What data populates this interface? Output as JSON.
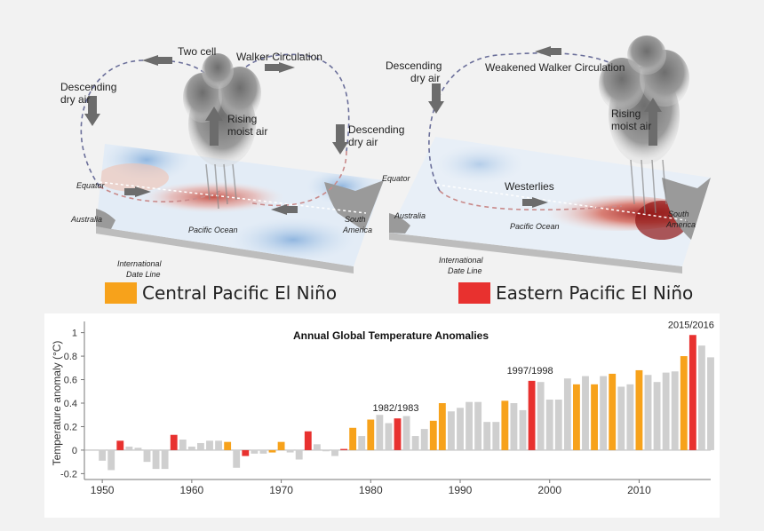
{
  "diagram": {
    "left_panel": {
      "labels": {
        "descending_left": [
          "Descending",
          "dry air"
        ],
        "two_cell": "Two cell",
        "walker": "Walker Circulation",
        "rising": [
          "Rising",
          "moist air"
        ],
        "descending_right": [
          "Descending",
          "dry air"
        ],
        "equator": "Equator",
        "australia": "Australia",
        "pacific": "Pacific Ocean",
        "south_america": [
          "South",
          "America"
        ],
        "date_line": [
          "International",
          "Date Line"
        ]
      }
    },
    "right_panel": {
      "labels": {
        "descending": [
          "Descending",
          "dry air"
        ],
        "weakened": "Weakened Walker Circulation",
        "rising": [
          "Rising",
          "moist air"
        ],
        "equator": "Equator",
        "westerlies": "Westerlies",
        "australia": "Australia",
        "pacific": "Pacific Ocean",
        "south_america": [
          "South",
          "America"
        ],
        "date_line": [
          "International",
          "Date Line"
        ]
      }
    },
    "legend": [
      {
        "label": "Central Pacific El Niño",
        "color": "#f7a21b"
      },
      {
        "label": "Eastern Pacific El Niño",
        "color": "#e8312f"
      }
    ]
  },
  "chart_data": {
    "type": "bar",
    "title": "Annual Global Temperature Anomalies",
    "ylabel": "Temperature anomaly (°C)",
    "xlabel": "",
    "xlim": [
      1948,
      2018
    ],
    "ylim": [
      -0.25,
      1.05
    ],
    "x_ticks": [
      1950,
      1960,
      1970,
      1980,
      1990,
      2000,
      2010
    ],
    "y_ticks": [
      -0.2,
      0,
      0.2,
      0.4,
      0.6,
      0.8,
      1
    ],
    "colors": {
      "neutral": "#cfcfcf",
      "central": "#f7a21b",
      "eastern": "#e8312f"
    },
    "annotations": [
      {
        "text": "1982/1983",
        "year": 1983
      },
      {
        "text": "1997/1998",
        "year": 1998
      },
      {
        "text": "2015/2016",
        "year": 2016
      }
    ],
    "years": [
      1950,
      1951,
      1952,
      1953,
      1954,
      1955,
      1956,
      1957,
      1958,
      1959,
      1960,
      1961,
      1962,
      1963,
      1964,
      1965,
      1966,
      1967,
      1968,
      1969,
      1970,
      1971,
      1972,
      1973,
      1974,
      1975,
      1976,
      1977,
      1978,
      1979,
      1980,
      1981,
      1982,
      1983,
      1984,
      1985,
      1986,
      1987,
      1988,
      1989,
      1990,
      1991,
      1992,
      1993,
      1994,
      1995,
      1996,
      1997,
      1998,
      1999,
      2000,
      2001,
      2002,
      2003,
      2004,
      2005,
      2006,
      2007,
      2008,
      2009,
      2010,
      2011,
      2012,
      2013,
      2014,
      2015,
      2016,
      2017,
      2018
    ],
    "values": [
      -0.09,
      -0.17,
      0.08,
      0.03,
      0.02,
      -0.1,
      -0.16,
      -0.16,
      0.13,
      0.09,
      0.03,
      0.06,
      0.08,
      0.08,
      0.07,
      -0.15,
      -0.05,
      -0.03,
      -0.03,
      -0.02,
      0.07,
      -0.02,
      -0.08,
      0.16,
      0.05,
      -0.01,
      -0.05,
      0.01,
      0.19,
      0.12,
      0.26,
      0.3,
      0.23,
      0.27,
      0.29,
      0.12,
      0.18,
      0.25,
      0.4,
      0.33,
      0.36,
      0.41,
      0.41,
      0.24,
      0.24,
      0.42,
      0.4,
      0.34,
      0.59,
      0.58,
      0.43,
      0.43,
      0.61,
      0.56,
      0.63,
      0.56,
      0.63,
      0.65,
      0.54,
      0.56,
      0.68,
      0.64,
      0.58,
      0.66,
      0.67,
      0.8,
      0.98,
      0.89,
      0.79
    ],
    "types": [
      "n",
      "n",
      "e",
      "n",
      "n",
      "n",
      "n",
      "n",
      "e",
      "n",
      "n",
      "n",
      "n",
      "n",
      "c",
      "n",
      "e",
      "n",
      "n",
      "c",
      "c",
      "n",
      "n",
      "e",
      "n",
      "n",
      "n",
      "e",
      "c",
      "n",
      "c",
      "n",
      "n",
      "e",
      "n",
      "n",
      "n",
      "c",
      "c",
      "n",
      "n",
      "n",
      "n",
      "n",
      "n",
      "c",
      "n",
      "n",
      "e",
      "n",
      "n",
      "n",
      "n",
      "c",
      "n",
      "c",
      "n",
      "c",
      "n",
      "n",
      "c",
      "n",
      "n",
      "n",
      "n",
      "c",
      "e",
      "n",
      "n"
    ]
  }
}
